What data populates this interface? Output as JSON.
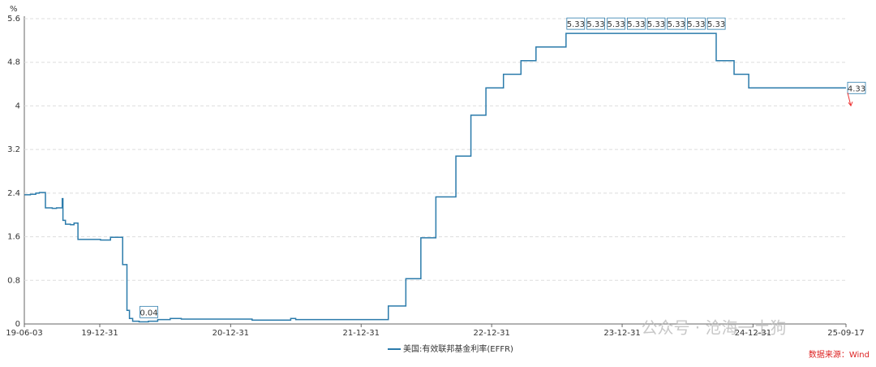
{
  "chart_data": {
    "type": "line",
    "step": true,
    "y_unit": "%",
    "x": [
      "19-06-03",
      "19-06-20",
      "19-07-05",
      "19-07-15",
      "19-08-01",
      "19-08-20",
      "19-09-01",
      "19-09-17",
      "19-09-19",
      "19-09-26",
      "19-10-10",
      "19-10-20",
      "19-10-31",
      "19-12-01",
      "20-01-02",
      "20-01-30",
      "20-03-04",
      "20-03-16",
      "20-03-23",
      "20-04-01",
      "20-04-19",
      "20-05-15",
      "20-06-10",
      "20-07-15",
      "20-08-15",
      "21-01-04",
      "21-03-01",
      "21-06-17",
      "21-07-01",
      "21-09-01",
      "22-03-17",
      "22-05-05",
      "22-06-16",
      "22-07-28",
      "22-09-22",
      "22-11-03",
      "22-12-15",
      "23-02-02",
      "23-03-23",
      "23-05-04",
      "23-07-27",
      "24-09-19",
      "24-11-08",
      "24-12-19",
      "25-09-17"
    ],
    "series": [
      {
        "name": "美国:有效联邦基金利率(EFFR)",
        "color": "#2b7bab",
        "values": [
          2.37,
          2.38,
          2.4,
          2.41,
          2.13,
          2.12,
          2.13,
          2.3,
          1.9,
          1.83,
          1.82,
          1.85,
          1.55,
          1.55,
          1.54,
          1.59,
          1.09,
          0.25,
          0.1,
          0.05,
          0.04,
          0.05,
          0.08,
          0.1,
          0.09,
          0.09,
          0.07,
          0.1,
          0.08,
          0.08,
          0.33,
          0.83,
          1.58,
          2.33,
          3.08,
          3.83,
          4.33,
          4.58,
          4.83,
          5.08,
          5.33,
          4.83,
          4.58,
          4.33,
          4.33
        ]
      }
    ],
    "annotations": [
      {
        "x": "20-04-19",
        "y": 0.04
      },
      {
        "x": "23-07-27",
        "y": 5.33
      },
      {
        "x": "23-09-21",
        "y": 5.33
      },
      {
        "x": "23-11-17",
        "y": 5.33
      },
      {
        "x": "24-01-12",
        "y": 5.33
      },
      {
        "x": "24-03-08",
        "y": 5.33
      },
      {
        "x": "24-05-03",
        "y": 5.33
      },
      {
        "x": "24-06-28",
        "y": 5.33
      },
      {
        "x": "24-08-23",
        "y": 5.33
      },
      {
        "x": "25-09-17",
        "y": 4.33
      }
    ],
    "xlim": [
      "19-06-03",
      "25-09-17"
    ],
    "xticks": [
      "19-06-03",
      "19-12-31",
      "20-12-31",
      "21-12-31",
      "22-12-31",
      "23-12-31",
      "24-12-31",
      "25-09-17"
    ],
    "ylim": [
      0,
      5.6
    ],
    "yticks": [
      0,
      0.8,
      1.6,
      2.4,
      3.2,
      4,
      4.8,
      5.6
    ],
    "grid": true,
    "watermark": "公众号 · 沧海一土狗",
    "source": "数据来源：Wind"
  }
}
